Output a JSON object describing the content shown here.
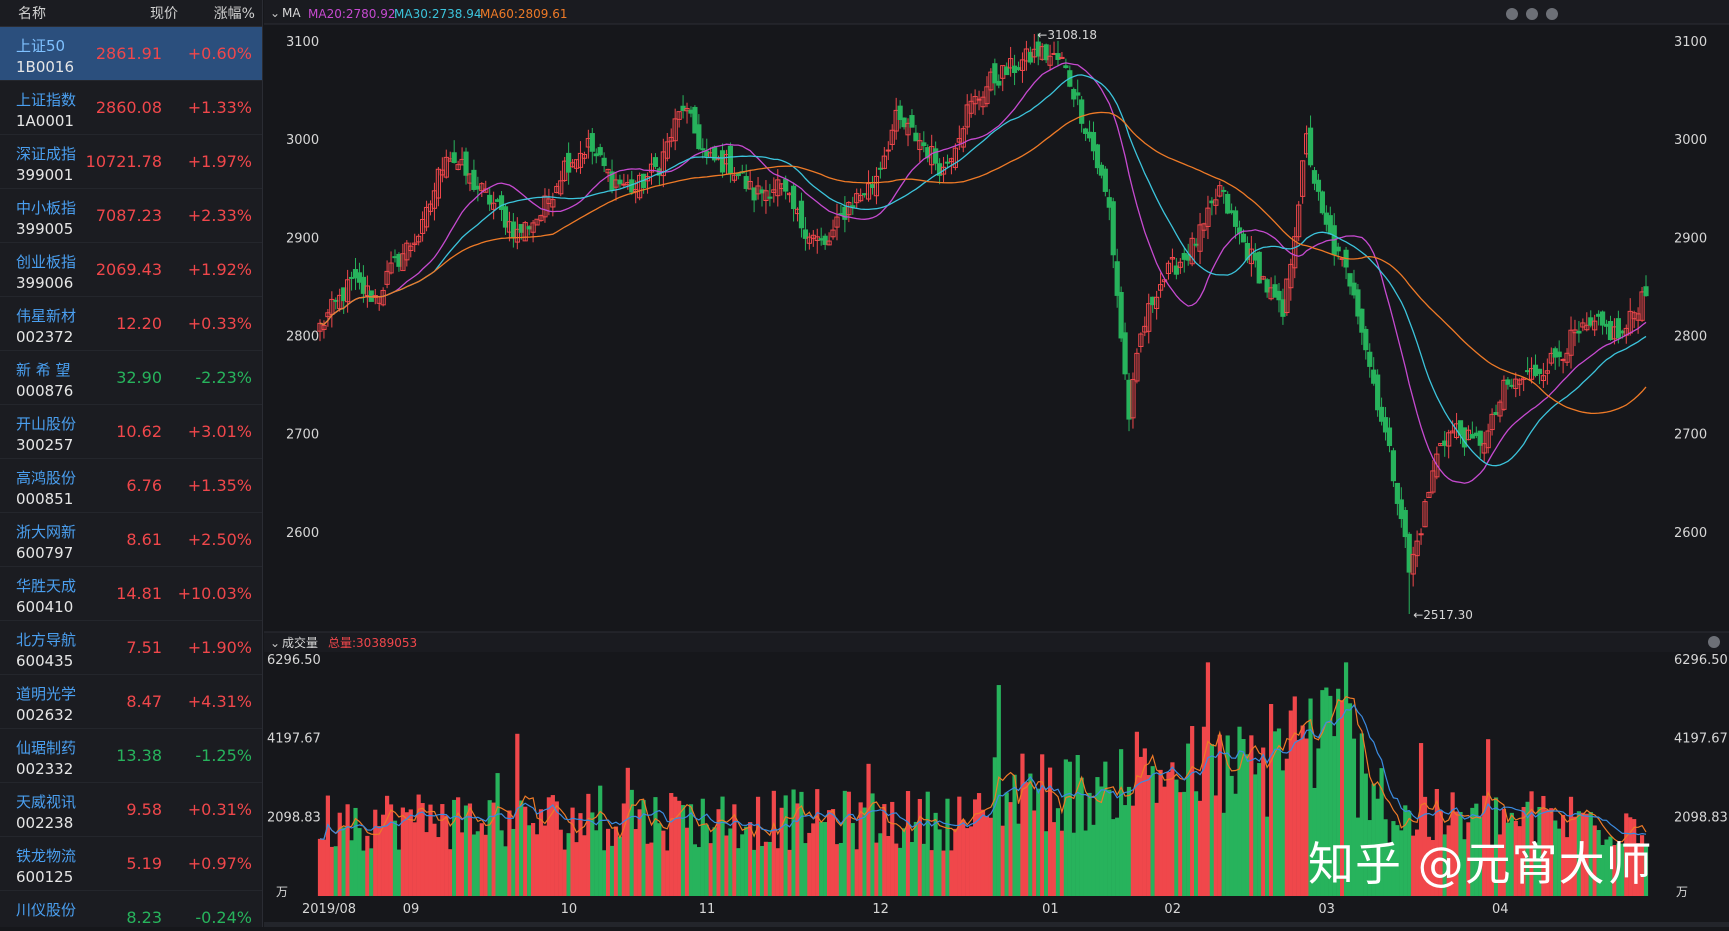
{
  "watchlist": {
    "headers": {
      "name": "名称",
      "price": "现价",
      "change": "涨幅%"
    },
    "rows": [
      {
        "name": "上证50",
        "code": "1B0016",
        "price": "2861.91",
        "change": "+0.60%",
        "dir": "up",
        "selected": true
      },
      {
        "name": "上证指数",
        "code": "1A0001",
        "price": "2860.08",
        "change": "+1.33%",
        "dir": "up"
      },
      {
        "name": "深证成指",
        "code": "399001",
        "price": "10721.78",
        "change": "+1.97%",
        "dir": "up"
      },
      {
        "name": "中小板指",
        "code": "399005",
        "price": "7087.23",
        "change": "+2.33%",
        "dir": "up"
      },
      {
        "name": "创业板指",
        "code": "399006",
        "price": "2069.43",
        "change": "+1.92%",
        "dir": "up"
      },
      {
        "name": "伟星新材",
        "code": "002372",
        "price": "12.20",
        "change": "+0.33%",
        "dir": "up"
      },
      {
        "name": "新 希 望",
        "code": "000876",
        "price": "32.90",
        "change": "-2.23%",
        "dir": "dn"
      },
      {
        "name": "开山股份",
        "code": "300257",
        "price": "10.62",
        "change": "+3.01%",
        "dir": "up"
      },
      {
        "name": "高鸿股份",
        "code": "000851",
        "price": "6.76",
        "change": "+1.35%",
        "dir": "up"
      },
      {
        "name": "浙大网新",
        "code": "600797",
        "price": "8.61",
        "change": "+2.50%",
        "dir": "up"
      },
      {
        "name": "华胜天成",
        "code": "600410",
        "price": "14.81",
        "change": "+10.03%",
        "dir": "up"
      },
      {
        "name": "北方导航",
        "code": "600435",
        "price": "7.51",
        "change": "+1.90%",
        "dir": "up"
      },
      {
        "name": "道明光学",
        "code": "002632",
        "price": "8.47",
        "change": "+4.31%",
        "dir": "up"
      },
      {
        "name": "仙琚制药",
        "code": "002332",
        "price": "13.38",
        "change": "-1.25%",
        "dir": "dn"
      },
      {
        "name": "天威视讯",
        "code": "002238",
        "price": "9.58",
        "change": "+0.31%",
        "dir": "up"
      },
      {
        "name": "铁龙物流",
        "code": "600125",
        "price": "5.19",
        "change": "+0.97%",
        "dir": "up"
      },
      {
        "name": "川仪股份",
        "code": "",
        "price": "8.23",
        "change": "-0.24%",
        "dir": "dn"
      }
    ]
  },
  "main_panel": {
    "indicator": "MA",
    "ma20": "MA20:2780.92",
    "ma30": "MA30:2738.94",
    "ma60": "MA60:2809.61",
    "y_ticks": [
      "3100",
      "3000",
      "2900",
      "2800",
      "2700",
      "2600"
    ],
    "high_label": "←3108.18",
    "low_label": "←2517.30"
  },
  "volume_panel": {
    "title": "成交量",
    "total": "总量:30389053",
    "y_ticks": [
      "6296.50",
      "4197.67",
      "2098.83"
    ],
    "unit": "万"
  },
  "x_axis": {
    "labels": [
      "2019/08",
      "09",
      "10",
      "11",
      "12",
      "01",
      "02",
      "03",
      "04"
    ]
  },
  "watermark": "知乎 @元宵大师",
  "colors": {
    "up": "#f0474b",
    "down": "#27b35c",
    "ma20": "#c64ad0",
    "ma30": "#3cc4dc",
    "ma60": "#ee7a27"
  },
  "chart_data": {
    "type": "candlestick",
    "x": [
      "2019/08",
      "09",
      "10",
      "11",
      "12",
      "01",
      "02",
      "03",
      "04"
    ],
    "price_ylim": [
      2517.3,
      3108.18
    ],
    "price_ticks": [
      3100,
      3000,
      2900,
      2800,
      2700,
      2600
    ],
    "high": 3108.18,
    "low": 2517.3,
    "close_anchors": [
      [
        0,
        2810
      ],
      [
        8,
        2855
      ],
      [
        14,
        2840
      ],
      [
        20,
        2880
      ],
      [
        26,
        2910
      ],
      [
        32,
        2990
      ],
      [
        38,
        2960
      ],
      [
        44,
        2935
      ],
      [
        50,
        2905
      ],
      [
        56,
        2925
      ],
      [
        62,
        2975
      ],
      [
        68,
        2995
      ],
      [
        74,
        2960
      ],
      [
        80,
        2950
      ],
      [
        86,
        2975
      ],
      [
        92,
        3035
      ],
      [
        98,
        2980
      ],
      [
        104,
        2975
      ],
      [
        110,
        2945
      ],
      [
        116,
        2955
      ],
      [
        122,
        2915
      ],
      [
        128,
        2890
      ],
      [
        134,
        2935
      ],
      [
        140,
        2955
      ],
      [
        146,
        3020
      ],
      [
        152,
        3000
      ],
      [
        158,
        2970
      ],
      [
        164,
        3030
      ],
      [
        170,
        3060
      ],
      [
        176,
        3075
      ],
      [
        182,
        3090
      ],
      [
        188,
        3080
      ],
      [
        192,
        3040
      ],
      [
        196,
        2990
      ],
      [
        200,
        2930
      ],
      [
        203,
        2800
      ],
      [
        205,
        2720
      ],
      [
        208,
        2800
      ],
      [
        212,
        2850
      ],
      [
        216,
        2870
      ],
      [
        220,
        2885
      ],
      [
        224,
        2910
      ],
      [
        228,
        2950
      ],
      [
        232,
        2910
      ],
      [
        236,
        2880
      ],
      [
        240,
        2850
      ],
      [
        244,
        2820
      ],
      [
        248,
        2940
      ],
      [
        250,
        3000
      ],
      [
        254,
        2920
      ],
      [
        258,
        2880
      ],
      [
        262,
        2850
      ],
      [
        266,
        2770
      ],
      [
        270,
        2700
      ],
      [
        274,
        2620
      ],
      [
        276,
        2560
      ],
      [
        278,
        2590
      ],
      [
        280,
        2625
      ],
      [
        284,
        2695
      ],
      [
        288,
        2705
      ],
      [
        292,
        2690
      ],
      [
        296,
        2700
      ],
      [
        300,
        2745
      ],
      [
        306,
        2760
      ],
      [
        312,
        2775
      ],
      [
        318,
        2800
      ],
      [
        324,
        2810
      ],
      [
        330,
        2800
      ],
      [
        336,
        2850
      ]
    ],
    "volume_ylim": [
      0,
      6296.5
    ],
    "volume_ticks": [
      6296.5,
      4197.67,
      2098.83
    ],
    "series": [
      {
        "name": "MA20",
        "value": 2780.92
      },
      {
        "name": "MA30",
        "value": 2738.94
      },
      {
        "name": "MA60",
        "value": 2809.61
      }
    ],
    "volume_total": 30389053
  }
}
